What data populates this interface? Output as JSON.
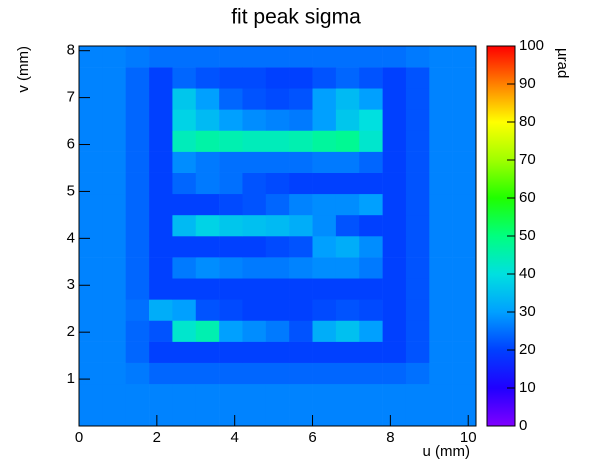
{
  "chart_data": {
    "type": "heatmap",
    "title": "fit peak sigma",
    "x_label": "u (mm)",
    "y_label": "v (mm)",
    "colorbar_label": "µrad",
    "xlim": [
      0,
      10.2
    ],
    "ylim": [
      0,
      8.1
    ],
    "xticks": [
      0,
      2,
      4,
      6,
      8,
      10
    ],
    "yticks": [
      1,
      2,
      3,
      4,
      5,
      6,
      7,
      8
    ],
    "zlim": [
      0,
      100
    ],
    "zticks": [
      0,
      10,
      20,
      30,
      40,
      50,
      60,
      70,
      80,
      90,
      100
    ],
    "colorscale": [
      "#8000ff",
      "#2000ff",
      "#0040ff",
      "#00a0ff",
      "#00e0e0",
      "#00ff80",
      "#20ff00",
      "#a0ff00",
      "#ffff00",
      "#ff8000",
      "#ff0000"
    ],
    "xbins": [
      0,
      0.6,
      1.2,
      1.8,
      2.4,
      3.0,
      3.6,
      4.2,
      4.8,
      5.4,
      6.0,
      6.6,
      7.2,
      7.8,
      8.4,
      9.0,
      9.6,
      10.2
    ],
    "ybins": [
      0,
      0.45,
      0.9,
      1.35,
      1.8,
      2.25,
      2.7,
      3.15,
      3.6,
      4.05,
      4.5,
      4.95,
      5.4,
      5.85,
      6.3,
      6.75,
      7.2,
      7.65,
      8.1
    ],
    "z": [
      [
        27,
        27,
        27,
        27,
        27,
        27,
        27,
        27,
        27,
        27,
        27,
        27,
        27,
        27,
        27,
        27,
        27
      ],
      [
        27,
        27,
        27,
        27,
        27,
        27,
        27,
        27,
        27,
        27,
        27,
        27,
        27,
        27,
        27,
        27,
        27
      ],
      [
        27,
        27,
        26,
        24,
        24,
        24,
        24,
        24,
        24,
        24,
        24,
        24,
        24,
        24,
        25,
        27,
        27
      ],
      [
        27,
        27,
        24,
        20,
        20,
        20,
        20,
        20,
        20,
        20,
        20,
        20,
        20,
        20,
        22,
        27,
        27
      ],
      [
        27,
        27,
        24,
        22,
        42,
        45,
        30,
        28,
        26,
        22,
        32,
        35,
        30,
        20,
        22,
        27,
        27
      ],
      [
        27,
        27,
        25,
        32,
        30,
        22,
        21,
        20,
        20,
        20,
        21,
        22,
        21,
        20,
        22,
        27,
        27
      ],
      [
        27,
        27,
        24,
        20,
        20,
        20,
        20,
        20,
        20,
        20,
        20,
        20,
        20,
        20,
        22,
        27,
        27
      ],
      [
        27,
        27,
        24,
        20,
        26,
        28,
        27,
        26,
        26,
        27,
        28,
        28,
        26,
        20,
        22,
        27,
        27
      ],
      [
        27,
        27,
        24,
        20,
        20,
        20,
        20,
        20,
        21,
        22,
        30,
        32,
        28,
        20,
        22,
        27,
        27
      ],
      [
        27,
        27,
        24,
        20,
        34,
        38,
        36,
        35,
        34,
        32,
        28,
        22,
        20,
        20,
        22,
        27,
        27
      ],
      [
        27,
        27,
        24,
        20,
        20,
        20,
        21,
        22,
        24,
        27,
        28,
        28,
        30,
        20,
        22,
        27,
        27
      ],
      [
        27,
        27,
        24,
        20,
        24,
        26,
        25,
        22,
        21,
        20,
        20,
        20,
        20,
        20,
        22,
        27,
        27
      ],
      [
        27,
        27,
        24,
        20,
        28,
        26,
        25,
        25,
        25,
        25,
        26,
        26,
        24,
        20,
        22,
        27,
        27
      ],
      [
        27,
        27,
        24,
        20,
        44,
        46,
        45,
        44,
        44,
        45,
        47,
        48,
        42,
        20,
        22,
        27,
        27
      ],
      [
        27,
        27,
        24,
        20,
        38,
        34,
        30,
        28,
        27,
        26,
        30,
        36,
        40,
        20,
        22,
        27,
        27
      ],
      [
        27,
        27,
        24,
        20,
        36,
        30,
        24,
        22,
        21,
        22,
        30,
        34,
        30,
        20,
        22,
        27,
        27
      ],
      [
        27,
        27,
        24,
        20,
        24,
        22,
        21,
        21,
        20,
        20,
        22,
        24,
        22,
        20,
        22,
        27,
        27
      ],
      [
        27,
        27,
        26,
        25,
        25,
        25,
        25,
        25,
        25,
        25,
        25,
        25,
        25,
        25,
        26,
        27,
        27
      ]
    ]
  }
}
